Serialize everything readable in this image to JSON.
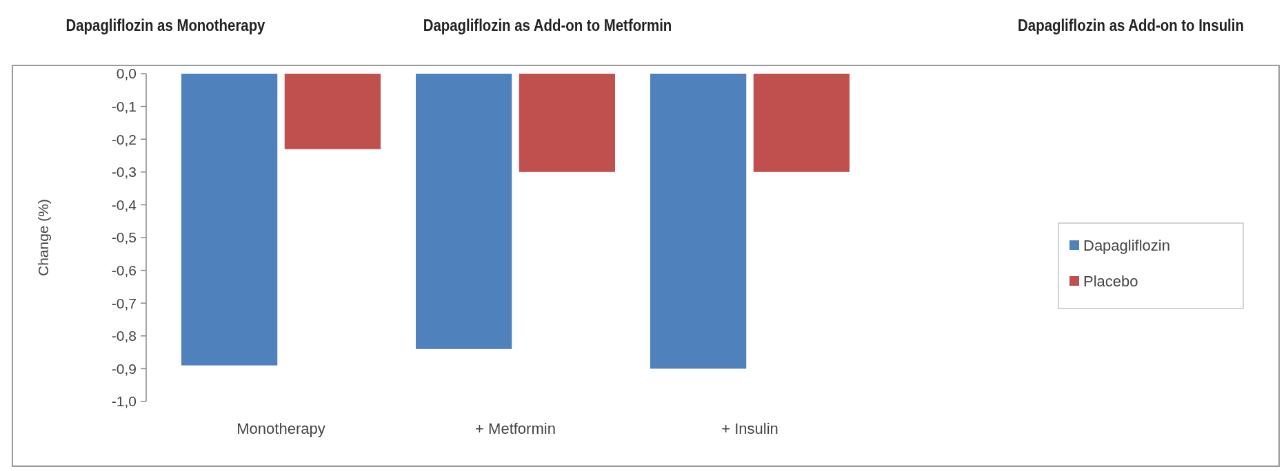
{
  "chart_data": {
    "type": "bar",
    "ylabel": "Change (%)",
    "categories": [
      "Monotherapy",
      "+ Metformin",
      "+ Insulin"
    ],
    "series": [
      {
        "name": "Dapagliflozin",
        "color": "#4f81bd",
        "values": [
          -0.89,
          -0.84,
          -0.9
        ]
      },
      {
        "name": "Placebo",
        "color": "#c0504d",
        "values": [
          -0.23,
          -0.3,
          -0.3
        ]
      }
    ],
    "ylim": [
      -1,
      0
    ],
    "yticks": [
      {
        "value": 0,
        "label": "0,0"
      },
      {
        "value": -0.1,
        "label": "-0,1"
      },
      {
        "value": -0.2,
        "label": "-0,2"
      },
      {
        "value": -0.3,
        "label": "-0,3"
      },
      {
        "value": -0.4,
        "label": "-0,4"
      },
      {
        "value": -0.5,
        "label": "-0,5"
      },
      {
        "value": -0.6,
        "label": "-0,6"
      },
      {
        "value": -0.7,
        "label": "-0,7"
      },
      {
        "value": -0.8,
        "label": "-0,8"
      },
      {
        "value": -0.9,
        "label": "-0,9"
      },
      {
        "value": -1,
        "label": "-1,0"
      }
    ],
    "annotations": [
      "Dapagliflozin as Monotherapy",
      "Dapagliflozin as Add-on to Metformin",
      "Dapagliflozin as Add-on to Insulin"
    ],
    "grid": false,
    "legend": "right"
  }
}
